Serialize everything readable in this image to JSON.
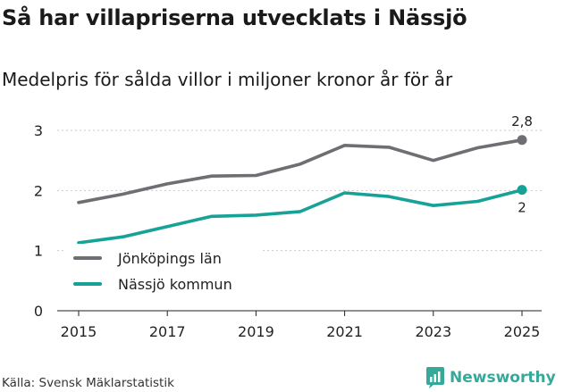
{
  "title": "Så har villapriserna utvecklats i Nässjö",
  "subtitle": "Medelpris för sålda villor i miljoner kronor år för år",
  "source": "Källa: Svensk Mäklarstatistik",
  "brand": {
    "name": "Newsworthy",
    "color": "#35a99a"
  },
  "chart_data": {
    "type": "line",
    "title": "Så har villapriserna utvecklats i Nässjö",
    "subtitle": "Medelpris för sålda villor i miljoner kronor år för år",
    "xlabel": "",
    "ylabel": "",
    "x": [
      2015,
      2016,
      2017,
      2018,
      2019,
      2020,
      2021,
      2022,
      2023,
      2024,
      2025
    ],
    "x_ticks": [
      "2015",
      "2017",
      "2019",
      "2021",
      "2023",
      "2025"
    ],
    "x_tick_values": [
      2015,
      2017,
      2019,
      2021,
      2023,
      2025
    ],
    "y_ticks": [
      "0",
      "1",
      "2",
      "3"
    ],
    "y_tick_values": [
      0,
      1,
      2,
      3
    ],
    "xlim": [
      2015,
      2025
    ],
    "ylim": [
      0,
      3
    ],
    "grid": true,
    "legend": "bottom-left",
    "series": [
      {
        "name": "Jönköpings län",
        "color": "#6e6e73",
        "values": [
          1.8,
          1.94,
          2.11,
          2.24,
          2.25,
          2.44,
          2.75,
          2.72,
          2.5,
          2.71,
          2.84
        ],
        "end_label": "2,8"
      },
      {
        "name": "Nässjö kommun",
        "color": "#17a297",
        "values": [
          1.13,
          1.23,
          1.4,
          1.57,
          1.59,
          1.65,
          1.96,
          1.9,
          1.75,
          1.82,
          2.01
        ],
        "end_label": "2"
      }
    ]
  }
}
